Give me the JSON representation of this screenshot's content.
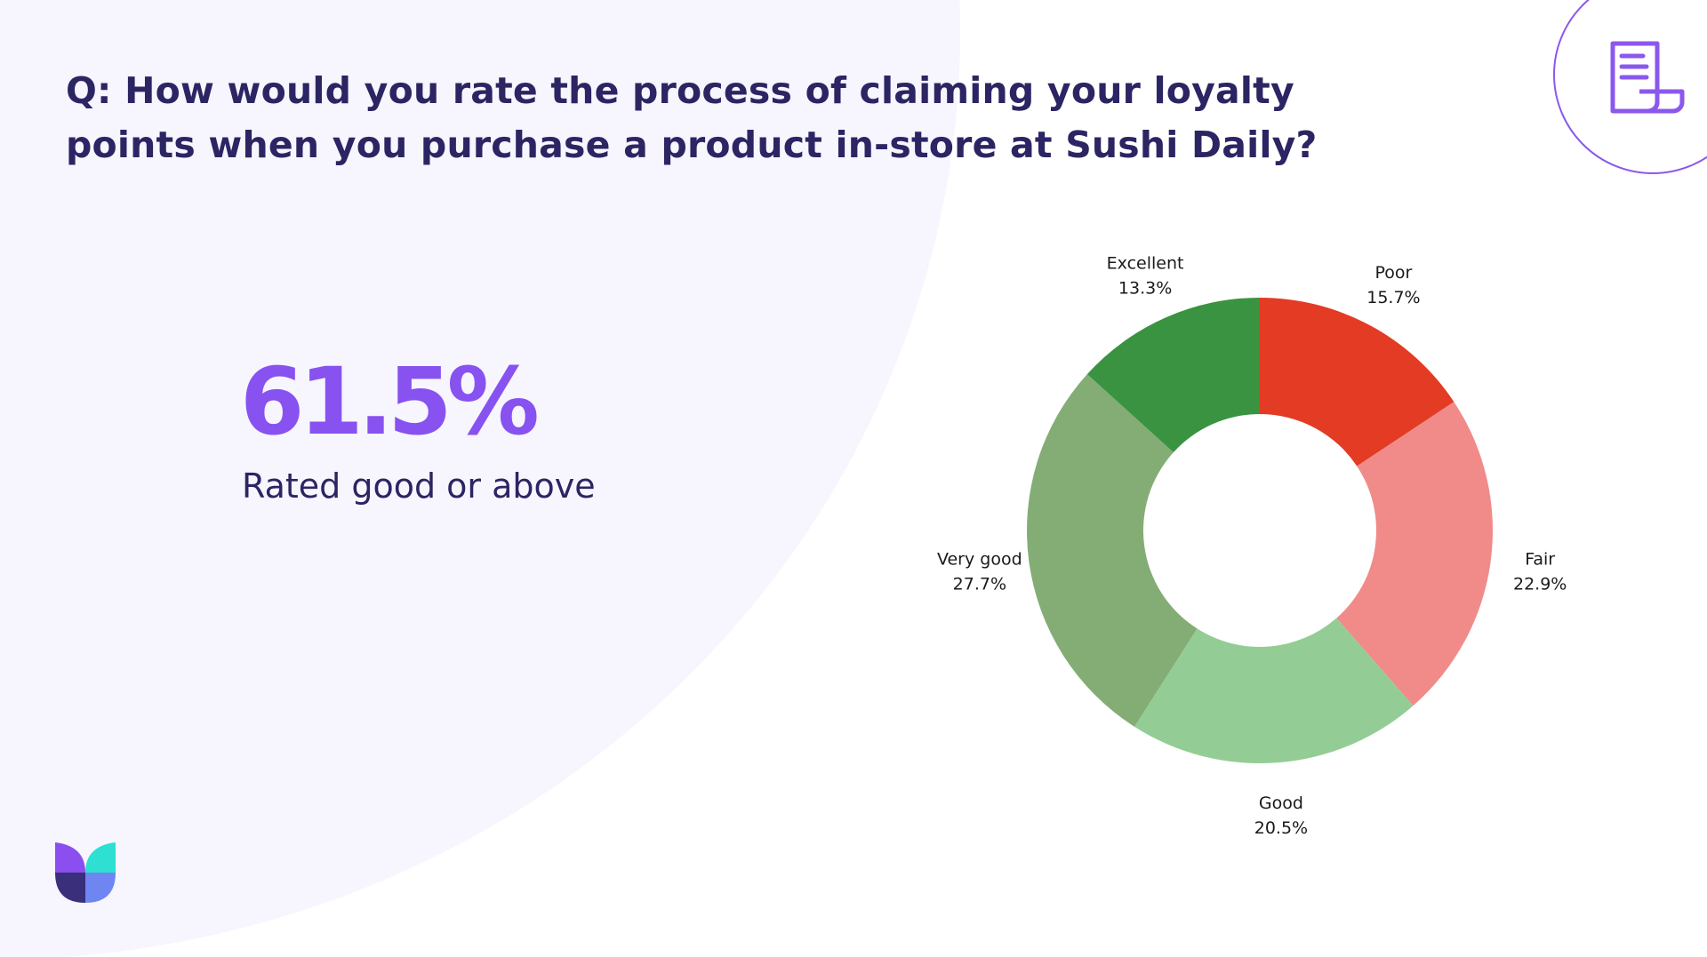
{
  "question": "Q: How would you rate the process of claiming your loyalty points when you purchase a product in-store at Sushi Daily?",
  "highlight": {
    "value": "61.5%",
    "caption": "Rated good or above"
  },
  "icons": {
    "document": "document-scroll-icon",
    "logo": "brand-logo"
  },
  "colors": {
    "title": "#2c2563",
    "accent": "#8752f0",
    "background_blob": "#f7f5fd"
  },
  "chart_data": {
    "type": "pie",
    "donut": true,
    "categories": [
      "Poor",
      "Fair",
      "Good",
      "Very good",
      "Excellent"
    ],
    "values": [
      15.7,
      22.9,
      20.5,
      27.7,
      13.3
    ],
    "value_labels": [
      "15.7%",
      "22.9%",
      "20.5%",
      "27.7%",
      "13.3%"
    ],
    "colors": [
      "#e33b24",
      "#f08b8a",
      "#93cd95",
      "#84ad75",
      "#3a9340"
    ],
    "title": "",
    "legend": "none"
  }
}
